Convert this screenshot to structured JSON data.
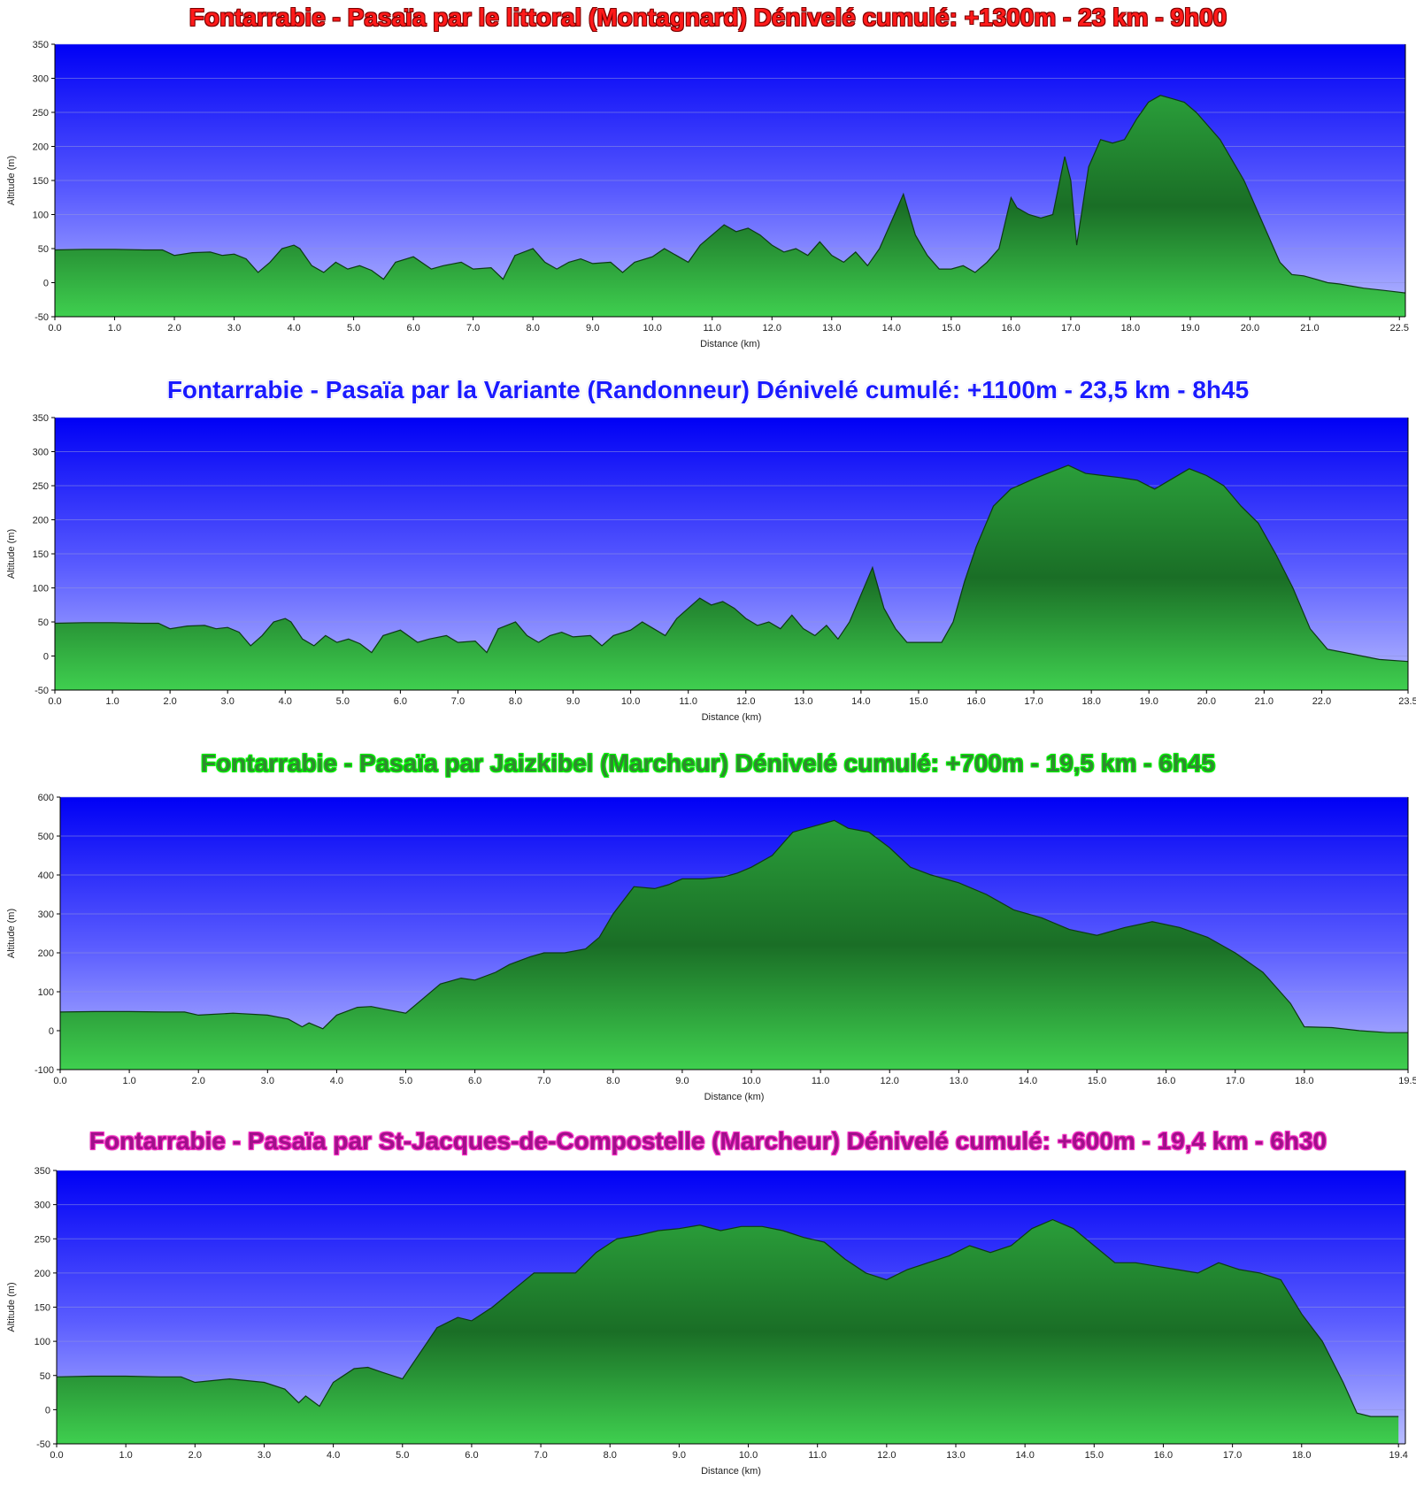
{
  "chart_data": [
    {
      "type": "area",
      "title": "Fontarrabie - Pasaïa par le littoral (Montagnard) Dénivelé cumulé: +1300m - 23 km - 9h00",
      "title_style": "red",
      "xlabel": "Distance   (km)",
      "ylabel": "Altitude (m)",
      "xlim": [
        0,
        22.6
      ],
      "ylim": [
        -50,
        350
      ],
      "xticks": [
        0,
        1,
        2,
        3,
        4,
        5,
        6,
        7,
        8,
        9,
        10,
        11,
        12,
        13,
        14,
        15,
        16,
        17,
        18,
        19,
        20,
        21,
        22.5
      ],
      "xtick_labels": [
        "0.0",
        "1.0",
        "2.0",
        "3.0",
        "4.0",
        "5.0",
        "6.0",
        "7.0",
        "8.0",
        "9.0",
        "10.0",
        "11.0",
        "12.0",
        "13.0",
        "14.0",
        "15.0",
        "16.0",
        "17.0",
        "18.0",
        "19.0",
        "20.0",
        "21.0",
        "22.5"
      ],
      "yticks": [
        -50,
        0,
        50,
        100,
        150,
        200,
        250,
        300,
        350
      ],
      "grid": true,
      "series": [
        {
          "x": [
            0,
            0.5,
            1,
            1.5,
            1.8,
            2.0,
            2.3,
            2.6,
            2.8,
            3.0,
            3.2,
            3.4,
            3.6,
            3.8,
            4.0,
            4.1,
            4.3,
            4.5,
            4.7,
            4.9,
            5.1,
            5.3,
            5.5,
            5.7,
            6.0,
            6.3,
            6.5,
            6.8,
            7.0,
            7.3,
            7.5,
            7.7,
            8.0,
            8.2,
            8.4,
            8.6,
            8.8,
            9.0,
            9.3,
            9.5,
            9.7,
            10.0,
            10.2,
            10.4,
            10.6,
            10.8,
            11.0,
            11.2,
            11.4,
            11.6,
            11.8,
            12.0,
            12.2,
            12.4,
            12.6,
            12.8,
            13.0,
            13.2,
            13.4,
            13.6,
            13.8,
            14.0,
            14.2,
            14.4,
            14.6,
            14.8,
            15.0,
            15.2,
            15.4,
            15.6,
            15.8,
            16.0,
            16.1,
            16.3,
            16.5,
            16.7,
            16.9,
            17.0,
            17.1,
            17.3,
            17.5,
            17.7,
            17.9,
            18.1,
            18.3,
            18.5,
            18.7,
            18.9,
            19.1,
            19.3,
            19.5,
            19.7,
            19.9,
            20.1,
            20.3,
            20.5,
            20.7,
            20.9,
            21.1,
            21.3,
            21.5,
            21.7,
            21.9,
            22.1,
            22.3,
            22.6
          ],
          "y": [
            48,
            49,
            49,
            48,
            48,
            40,
            44,
            45,
            40,
            42,
            35,
            15,
            30,
            50,
            55,
            50,
            25,
            15,
            30,
            20,
            25,
            18,
            5,
            30,
            38,
            20,
            25,
            30,
            20,
            22,
            5,
            40,
            50,
            30,
            20,
            30,
            35,
            28,
            30,
            15,
            30,
            38,
            50,
            40,
            30,
            55,
            70,
            85,
            75,
            80,
            70,
            55,
            45,
            50,
            40,
            60,
            40,
            30,
            45,
            25,
            50,
            90,
            130,
            70,
            40,
            20,
            20,
            25,
            15,
            30,
            50,
            125,
            110,
            100,
            95,
            100,
            185,
            150,
            55,
            170,
            210,
            205,
            210,
            240,
            265,
            275,
            270,
            265,
            250,
            230,
            210,
            180,
            150,
            110,
            70,
            30,
            12,
            10,
            5,
            0,
            -2,
            -5,
            -8,
            -10,
            -12,
            -15
          ]
        }
      ]
    },
    {
      "type": "area",
      "title": "Fontarrabie - Pasaïa par la Variante (Randonneur) Dénivelé cumulé: +1100m - 23,5 km - 8h45",
      "title_style": "blue",
      "xlabel": "Distance   (km)",
      "ylabel": "Altitude (m)",
      "xlim": [
        0,
        23.5
      ],
      "ylim": [
        -50,
        350
      ],
      "xticks": [
        0,
        1,
        2,
        3,
        4,
        5,
        6,
        7,
        8,
        9,
        10,
        11,
        12,
        13,
        14,
        15,
        16,
        17,
        18,
        19,
        20,
        21,
        22,
        23.5
      ],
      "xtick_labels": [
        "0.0",
        "1.0",
        "2.0",
        "3.0",
        "4.0",
        "5.0",
        "6.0",
        "7.0",
        "8.0",
        "9.0",
        "10.0",
        "11.0",
        "12.0",
        "13.0",
        "14.0",
        "15.0",
        "16.0",
        "17.0",
        "18.0",
        "19.0",
        "20.0",
        "21.0",
        "22.0",
        "23.5"
      ],
      "yticks": [
        -50,
        0,
        50,
        100,
        150,
        200,
        250,
        300,
        350
      ],
      "grid": true,
      "series": [
        {
          "x": [
            0,
            0.5,
            1,
            1.5,
            1.8,
            2.0,
            2.3,
            2.6,
            2.8,
            3.0,
            3.2,
            3.4,
            3.6,
            3.8,
            4.0,
            4.1,
            4.3,
            4.5,
            4.7,
            4.9,
            5.1,
            5.3,
            5.5,
            5.7,
            6.0,
            6.3,
            6.5,
            6.8,
            7.0,
            7.3,
            7.5,
            7.7,
            8.0,
            8.2,
            8.4,
            8.6,
            8.8,
            9.0,
            9.3,
            9.5,
            9.7,
            10.0,
            10.2,
            10.4,
            10.6,
            10.8,
            11.0,
            11.2,
            11.4,
            11.6,
            11.8,
            12.0,
            12.2,
            12.4,
            12.6,
            12.8,
            13.0,
            13.2,
            13.4,
            13.6,
            13.8,
            14.0,
            14.2,
            14.4,
            14.6,
            14.8,
            15.0,
            15.2,
            15.4,
            15.6,
            15.8,
            16.0,
            16.3,
            16.6,
            17.0,
            17.3,
            17.6,
            17.9,
            18.2,
            18.5,
            18.8,
            19.1,
            19.4,
            19.7,
            20.0,
            20.3,
            20.6,
            20.9,
            21.2,
            21.5,
            21.8,
            22.1,
            22.4,
            22.7,
            23.0,
            23.5
          ],
          "y": [
            48,
            49,
            49,
            48,
            48,
            40,
            44,
            45,
            40,
            42,
            35,
            15,
            30,
            50,
            55,
            50,
            25,
            15,
            30,
            20,
            25,
            18,
            5,
            30,
            38,
            20,
            25,
            30,
            20,
            22,
            5,
            40,
            50,
            30,
            20,
            30,
            35,
            28,
            30,
            15,
            30,
            38,
            50,
            40,
            30,
            55,
            70,
            85,
            75,
            80,
            70,
            55,
            45,
            50,
            40,
            60,
            40,
            30,
            45,
            25,
            50,
            90,
            130,
            70,
            40,
            20,
            20,
            20,
            20,
            50,
            110,
            160,
            220,
            245,
            260,
            270,
            280,
            268,
            265,
            262,
            258,
            245,
            260,
            275,
            265,
            250,
            220,
            195,
            150,
            100,
            40,
            10,
            5,
            0,
            -5,
            -8
          ]
        }
      ]
    },
    {
      "type": "area",
      "title": "Fontarrabie - Pasaïa par Jaizkibel (Marcheur) Dénivelé cumulé: +700m - 19,5 km - 6h45",
      "title_style": "green",
      "xlabel": "Distance   (km)",
      "ylabel": "Altitude (m)",
      "xlim": [
        0,
        19.5
      ],
      "ylim": [
        -100,
        600
      ],
      "xticks": [
        0,
        1,
        2,
        3,
        4,
        5,
        6,
        7,
        8,
        9,
        10,
        11,
        12,
        13,
        14,
        15,
        16,
        17,
        18,
        19.5
      ],
      "xtick_labels": [
        "0.0",
        "1.0",
        "2.0",
        "3.0",
        "4.0",
        "5.0",
        "6.0",
        "7.0",
        "8.0",
        "9.0",
        "10.0",
        "11.0",
        "12.0",
        "13.0",
        "14.0",
        "15.0",
        "16.0",
        "17.0",
        "18.0",
        "19.5"
      ],
      "yticks": [
        -100,
        0,
        100,
        200,
        300,
        400,
        500,
        600
      ],
      "grid": true,
      "series": [
        {
          "x": [
            0,
            0.5,
            1,
            1.5,
            1.8,
            2.0,
            2.5,
            3.0,
            3.3,
            3.5,
            3.6,
            3.8,
            4.0,
            4.3,
            4.5,
            4.7,
            5.0,
            5.3,
            5.5,
            5.8,
            6.0,
            6.3,
            6.5,
            6.8,
            7.0,
            7.3,
            7.6,
            7.8,
            8.0,
            8.3,
            8.6,
            8.8,
            9.0,
            9.3,
            9.6,
            9.8,
            10.0,
            10.3,
            10.6,
            11.0,
            11.2,
            11.4,
            11.7,
            12.0,
            12.3,
            12.6,
            13.0,
            13.4,
            13.8,
            14.2,
            14.6,
            15.0,
            15.4,
            15.8,
            16.2,
            16.6,
            17.0,
            17.4,
            17.8,
            18.0,
            18.4,
            18.8,
            19.2,
            19.5
          ],
          "y": [
            48,
            49,
            49,
            48,
            48,
            40,
            45,
            40,
            30,
            10,
            20,
            5,
            40,
            60,
            62,
            55,
            45,
            90,
            120,
            135,
            130,
            150,
            170,
            190,
            200,
            200,
            210,
            240,
            300,
            370,
            365,
            375,
            390,
            390,
            395,
            405,
            420,
            450,
            510,
            530,
            540,
            520,
            510,
            470,
            420,
            400,
            380,
            350,
            310,
            290,
            260,
            245,
            265,
            280,
            265,
            240,
            200,
            150,
            70,
            10,
            8,
            0,
            -5,
            -5
          ]
        }
      ]
    },
    {
      "type": "area",
      "title": "Fontarrabie - Pasaïa par St-Jacques-de-Compostelle (Marcheur) Dénivelé cumulé: +600m - 19,4 km - 6h30",
      "title_style": "pink",
      "xlabel": "Distance   (km)",
      "ylabel": "Altitude (m)",
      "xlim": [
        0,
        19.5
      ],
      "ylim": [
        -50,
        350
      ],
      "xticks": [
        0,
        1,
        2,
        3,
        4,
        5,
        6,
        7,
        8,
        9,
        10,
        11,
        12,
        13,
        14,
        15,
        16,
        17,
        18,
        19.4
      ],
      "xtick_labels": [
        "0.0",
        "1.0",
        "2.0",
        "3.0",
        "4.0",
        "5.0",
        "6.0",
        "7.0",
        "8.0",
        "9.0",
        "10.0",
        "11.0",
        "12.0",
        "13.0",
        "14.0",
        "15.0",
        "16.0",
        "17.0",
        "18.0",
        "19.4"
      ],
      "yticks": [
        -50,
        0,
        50,
        100,
        150,
        200,
        250,
        300,
        350
      ],
      "grid": true,
      "series": [
        {
          "x": [
            0,
            0.5,
            1,
            1.5,
            1.8,
            2.0,
            2.5,
            3.0,
            3.3,
            3.5,
            3.6,
            3.8,
            4.0,
            4.3,
            4.5,
            4.7,
            5.0,
            5.3,
            5.5,
            5.8,
            6.0,
            6.3,
            6.6,
            6.9,
            7.2,
            7.5,
            7.8,
            8.1,
            8.4,
            8.7,
            9.0,
            9.3,
            9.6,
            9.9,
            10.2,
            10.5,
            10.8,
            11.1,
            11.4,
            11.7,
            12.0,
            12.3,
            12.6,
            12.9,
            13.2,
            13.5,
            13.8,
            14.1,
            14.4,
            14.7,
            15.0,
            15.3,
            15.6,
            15.9,
            16.2,
            16.5,
            16.8,
            17.1,
            17.4,
            17.7,
            18.0,
            18.3,
            18.6,
            18.8,
            19.0,
            19.4
          ],
          "y": [
            48,
            49,
            49,
            48,
            48,
            40,
            45,
            40,
            30,
            10,
            20,
            5,
            40,
            60,
            62,
            55,
            45,
            90,
            120,
            135,
            130,
            150,
            175,
            200,
            200,
            200,
            230,
            250,
            255,
            262,
            265,
            270,
            262,
            268,
            268,
            262,
            252,
            245,
            220,
            200,
            190,
            205,
            215,
            225,
            240,
            230,
            240,
            265,
            278,
            265,
            240,
            215,
            215,
            210,
            205,
            200,
            215,
            205,
            200,
            190,
            140,
            100,
            40,
            -5,
            -10,
            -10
          ]
        }
      ]
    }
  ]
}
